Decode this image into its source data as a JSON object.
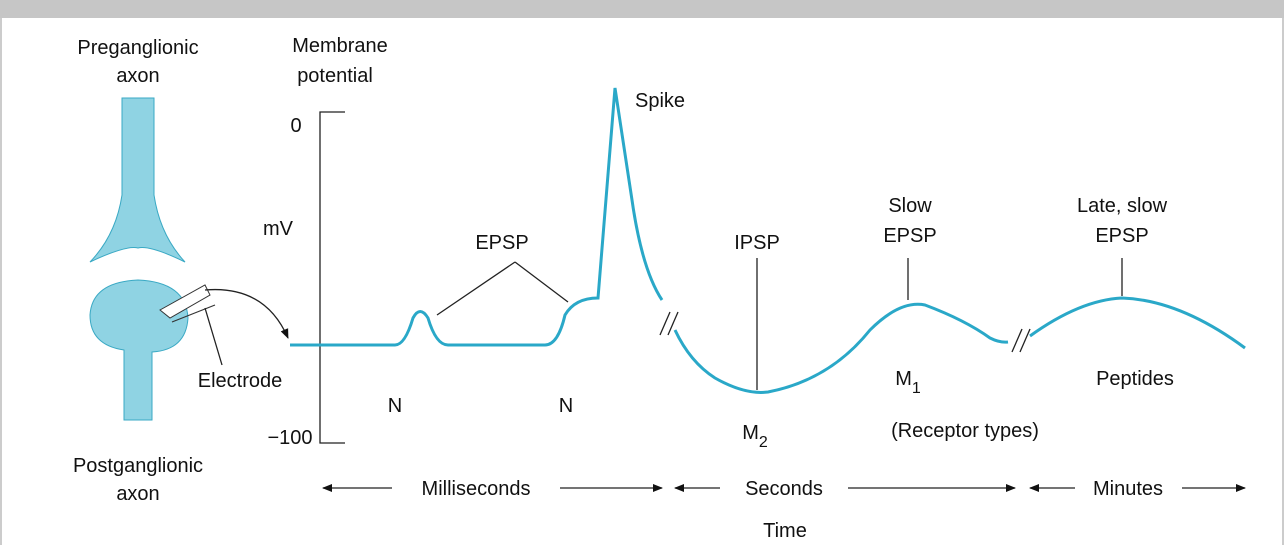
{
  "neuron": {
    "top_label": [
      "Preganglionic",
      "axon"
    ],
    "bottom_label": [
      "Postganglionic",
      "axon"
    ],
    "electrode": "Electrode"
  },
  "axis": {
    "title": [
      "Membrane",
      "potential"
    ],
    "top": "0",
    "unit": "mV",
    "bottom": "−100"
  },
  "events": {
    "spike": "Spike",
    "epsp": "EPSP",
    "ipsp": "IPSP",
    "slow_epsp": [
      "Slow",
      "EPSP"
    ],
    "late_epsp": [
      "Late, slow",
      "EPSP"
    ]
  },
  "receptors": {
    "n1": "N",
    "n2": "N",
    "m2": {
      "text": "M",
      "subscript": "2"
    },
    "m1": {
      "text": "M",
      "subscript": "1"
    },
    "peptides": "Peptides",
    "caption": "(Receptor types)"
  },
  "timescale": {
    "ms": "Milliseconds",
    "s": "Seconds",
    "min": "Minutes",
    "title": "Time"
  }
}
